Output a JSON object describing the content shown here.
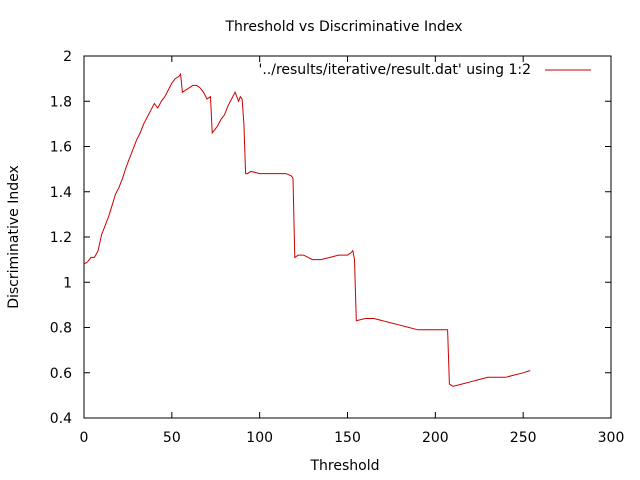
{
  "chart_data": {
    "type": "line",
    "title": "Threshold vs Discriminative Index",
    "xlabel": "Threshold",
    "ylabel": "Discriminative Index",
    "xlim": [
      0,
      300
    ],
    "ylim": [
      0.4,
      2
    ],
    "xticks": [
      0,
      50,
      100,
      150,
      200,
      250,
      300
    ],
    "yticks": [
      0.4,
      0.6,
      0.8,
      1,
      1.2,
      1.4,
      1.6,
      1.8,
      2
    ],
    "ytick_labels": [
      "0.4",
      "0.6",
      "0.8",
      "1",
      "1.2",
      "1.4",
      "1.6",
      "1.8",
      "2"
    ],
    "grid": false,
    "legend_position": "top-right",
    "series": [
      {
        "name": "'../results/iterative/result.dat' using 1:2",
        "color": "#cc0000",
        "x": [
          0,
          2,
          4,
          6,
          8,
          10,
          12,
          14,
          16,
          18,
          20,
          22,
          24,
          26,
          28,
          30,
          32,
          34,
          36,
          38,
          40,
          42,
          44,
          46,
          48,
          50,
          52,
          54,
          55,
          56,
          58,
          60,
          62,
          64,
          66,
          68,
          70,
          72,
          73,
          74,
          76,
          78,
          80,
          82,
          84,
          86,
          88,
          89,
          90,
          91,
          92,
          93,
          95,
          100,
          105,
          110,
          115,
          118,
          119,
          120,
          122,
          125,
          130,
          135,
          140,
          145,
          150,
          152,
          153,
          154,
          155,
          160,
          165,
          170,
          175,
          180,
          185,
          190,
          195,
          200,
          205,
          206,
          207,
          208,
          210,
          215,
          220,
          225,
          230,
          235,
          240,
          245,
          250,
          254
        ],
        "y": [
          1.08,
          1.09,
          1.11,
          1.11,
          1.14,
          1.21,
          1.25,
          1.29,
          1.34,
          1.39,
          1.42,
          1.46,
          1.51,
          1.55,
          1.59,
          1.63,
          1.66,
          1.7,
          1.73,
          1.76,
          1.79,
          1.77,
          1.8,
          1.82,
          1.85,
          1.88,
          1.9,
          1.91,
          1.92,
          1.84,
          1.85,
          1.86,
          1.87,
          1.87,
          1.86,
          1.84,
          1.81,
          1.82,
          1.66,
          1.67,
          1.69,
          1.72,
          1.74,
          1.78,
          1.81,
          1.84,
          1.8,
          1.82,
          1.81,
          1.7,
          1.48,
          1.48,
          1.49,
          1.48,
          1.48,
          1.48,
          1.48,
          1.47,
          1.46,
          1.11,
          1.12,
          1.12,
          1.1,
          1.1,
          1.11,
          1.12,
          1.12,
          1.13,
          1.14,
          1.1,
          0.83,
          0.84,
          0.84,
          0.83,
          0.82,
          0.81,
          0.8,
          0.79,
          0.79,
          0.79,
          0.79,
          0.79,
          0.79,
          0.55,
          0.54,
          0.55,
          0.56,
          0.57,
          0.58,
          0.58,
          0.58,
          0.59,
          0.6,
          0.61
        ]
      }
    ]
  }
}
